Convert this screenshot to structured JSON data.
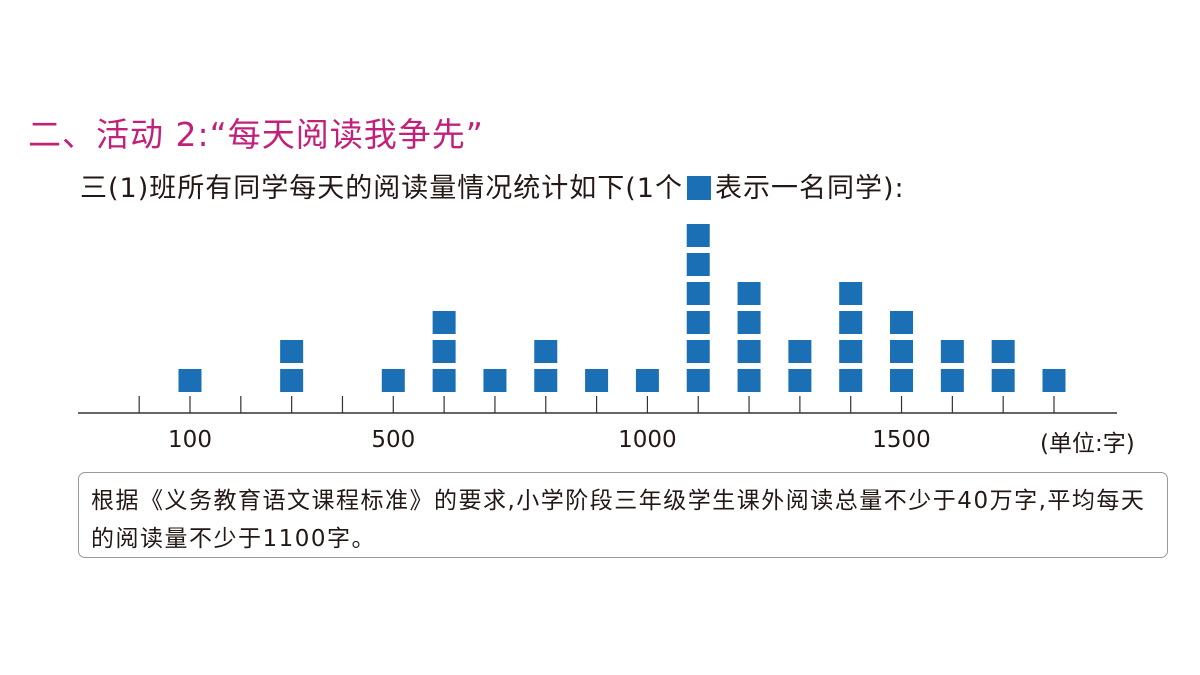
{
  "header": {
    "section_title": "二、活动 2:“每天阅读我争先”",
    "intro_before": "三(1)班所有同学每天的阅读量情况统计如下(1个",
    "intro_after": "表示一名同学):"
  },
  "colors": {
    "accent": "#c2217a",
    "square": "#1a6fb5",
    "axis": "#333333"
  },
  "note": {
    "text": "根据《义务教育语文课程标准》的要求,小学阶段三年级学生课外阅读总量不少于40万字,平均每天的阅读量不少于1100字。"
  },
  "chart_data": {
    "type": "dot_plot",
    "marker": "square",
    "x": [
      100,
      300,
      500,
      600,
      700,
      800,
      900,
      1000,
      1100,
      1200,
      1300,
      1400,
      1500,
      1600,
      1700,
      1800
    ],
    "counts": [
      1,
      2,
      1,
      3,
      1,
      2,
      1,
      1,
      6,
      4,
      2,
      4,
      3,
      2,
      2,
      1
    ],
    "xlim": [
      -100,
      1800
    ],
    "tick_step": 100,
    "tick_labels": [
      "100",
      "500",
      "1000",
      "1500"
    ],
    "tick_label_values": [
      100,
      500,
      1000,
      1500
    ],
    "unit_label": "(单位:字)"
  }
}
